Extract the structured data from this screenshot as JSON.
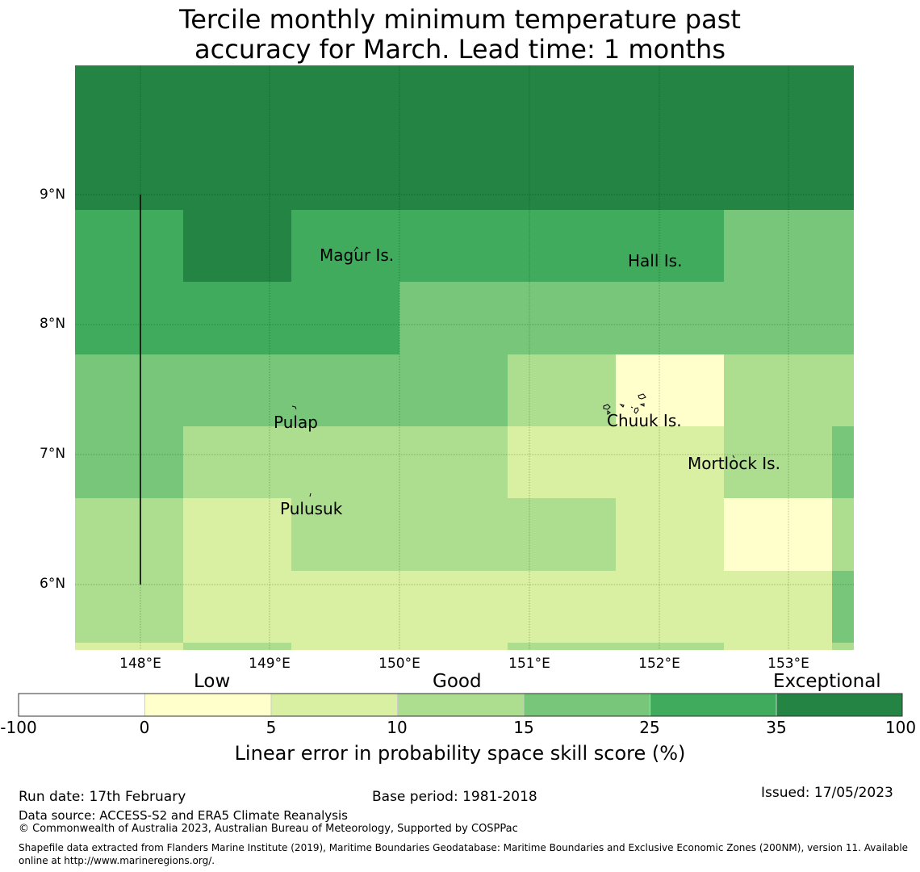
{
  "title": {
    "line1": "Tercile monthly minimum temperature past",
    "line2": "accuracy for March. Lead time: 1 months"
  },
  "map": {
    "lat_labels": [
      "9°N",
      "8°N",
      "7°N",
      "6°N"
    ],
    "lon_labels": [
      "148°E",
      "149°E",
      "150°E",
      "151°E",
      "152°E",
      "153°E"
    ],
    "places": {
      "magur": "Magur Is.",
      "hall": "Hall Is.",
      "pulap": "Pulap",
      "chuuk": "Chuuk Is.",
      "mortlock": "Mortlock Is.",
      "pulusuk": "Pulusuk"
    },
    "colors": {
      "c0": "#ffffff",
      "c1": "#ffffcc",
      "c2": "#d9f0a3",
      "c3": "#addd8e",
      "c4": "#78c679",
      "c5": "#41ab5d",
      "c6": "#238443"
    }
  },
  "colorbar": {
    "category_low": "Low",
    "category_good": "Good",
    "category_exceptional": "Exceptional",
    "ticks": [
      "-100",
      "0",
      "5",
      "10",
      "15",
      "25",
      "35",
      "100"
    ],
    "label": "Linear error in probability space skill score (%)"
  },
  "footer": {
    "run_date": "Run date: 17th February",
    "base_period": "Base period: 1981-2018",
    "issued": "Issued: 17/05/2023",
    "data_source": "Data source: ACCESS-S2 and ERA5 Climate Reanalysis",
    "copyright": "© Commonwealth of Australia 2023, Australian Bureau of Meteorology, Supported by COSPPac",
    "shapefile": "Shapefile data extracted from Flanders Marine Institute (2019), Maritime Boundaries Geodatabase: Maritime Boundaries and Exclusive Economic Zones (200NM), version 11. Available online at http://www.marineregions.org/."
  }
}
